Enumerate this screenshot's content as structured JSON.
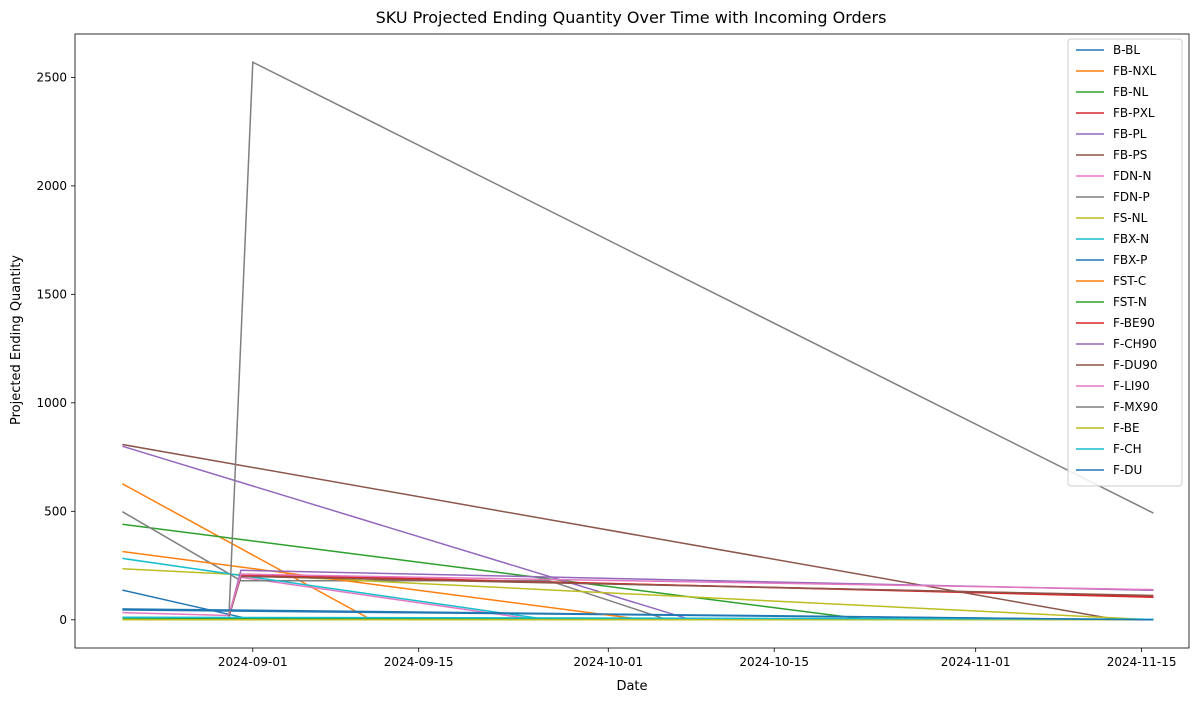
{
  "chart_data": {
    "type": "line",
    "title": "SKU Projected Ending Quantity Over Time with Incoming Orders",
    "xlabel": "Date",
    "ylabel": "Projected Ending Quantity",
    "xlim": [
      "2024-08-17",
      "2024-11-19"
    ],
    "ylim": [
      -130,
      2700
    ],
    "x_ticks": [
      "2024-09-01",
      "2024-09-15",
      "2024-10-01",
      "2024-10-15",
      "2024-11-01",
      "2024-11-15"
    ],
    "y_ticks": [
      0,
      500,
      1000,
      1500,
      2000,
      2500
    ],
    "grid": false,
    "legend": "top-right",
    "series": [
      {
        "name": "B-BL",
        "color": "#1f77b4",
        "points": [
          [
            "2024-08-21",
            137
          ],
          [
            "2024-09-01",
            0
          ],
          [
            "2024-11-16",
            0
          ]
        ]
      },
      {
        "name": "FB-NXL",
        "color": "#ff7f0e",
        "points": [
          [
            "2024-08-21",
            627
          ],
          [
            "2024-09-11",
            0
          ],
          [
            "2024-11-16",
            0
          ]
        ]
      },
      {
        "name": "FB-NL",
        "color": "#2ca02c",
        "points": [
          [
            "2024-08-21",
            440
          ],
          [
            "2024-10-23",
            0
          ],
          [
            "2024-11-16",
            0
          ]
        ]
      },
      {
        "name": "FB-PXL",
        "color": "#d62728",
        "points": [
          [
            "2024-08-30",
            18
          ],
          [
            "2024-08-31",
            210
          ],
          [
            "2024-11-16",
            104
          ]
        ]
      },
      {
        "name": "FB-PL",
        "color": "#9467bd",
        "points": [
          [
            "2024-08-21",
            800
          ],
          [
            "2024-10-08",
            0
          ],
          [
            "2024-11-16",
            0
          ]
        ]
      },
      {
        "name": "FB-PS",
        "color": "#8c564b",
        "points": [
          [
            "2024-08-21",
            808
          ],
          [
            "2024-11-13",
            0
          ],
          [
            "2024-11-16",
            0
          ]
        ]
      },
      {
        "name": "FDN-N",
        "color": "#e377c2",
        "points": [
          [
            "2024-08-21",
            33
          ],
          [
            "2024-08-30",
            20
          ],
          [
            "2024-08-31",
            196
          ],
          [
            "2024-09-25",
            0
          ],
          [
            "2024-11-16",
            0
          ]
        ]
      },
      {
        "name": "FDN-P",
        "color": "#7f7f7f",
        "points": [
          [
            "2024-08-21",
            498
          ],
          [
            "2024-08-31",
            180
          ],
          [
            "2024-09-26",
            180
          ],
          [
            "2024-10-06",
            0
          ],
          [
            "2024-11-16",
            0
          ]
        ]
      },
      {
        "name": "FS-NL",
        "color": "#bcbd22",
        "points": [
          [
            "2024-08-21",
            235
          ],
          [
            "2024-11-16",
            0
          ]
        ]
      },
      {
        "name": "FBX-N",
        "color": "#17becf",
        "points": [
          [
            "2024-08-21",
            283
          ],
          [
            "2024-09-26",
            0
          ],
          [
            "2024-11-16",
            0
          ]
        ]
      },
      {
        "name": "FBX-P",
        "color": "#1f77b4",
        "points": [
          [
            "2024-08-21",
            45
          ],
          [
            "2024-11-16",
            0
          ]
        ]
      },
      {
        "name": "FST-C",
        "color": "#ff7f0e",
        "points": [
          [
            "2024-08-21",
            315
          ],
          [
            "2024-10-04",
            0
          ],
          [
            "2024-11-16",
            0
          ]
        ]
      },
      {
        "name": "FST-N",
        "color": "#2ca02c",
        "points": [
          [
            "2024-08-21",
            8
          ],
          [
            "2024-11-16",
            0
          ]
        ]
      },
      {
        "name": "F-BE90",
        "color": "#d62728",
        "points": [
          [
            "2024-08-30",
            20
          ],
          [
            "2024-08-31",
            205
          ],
          [
            "2024-11-16",
            110
          ]
        ]
      },
      {
        "name": "F-CH90",
        "color": "#9467bd",
        "points": [
          [
            "2024-08-30",
            20
          ],
          [
            "2024-08-31",
            228
          ],
          [
            "2024-11-16",
            136
          ]
        ]
      },
      {
        "name": "F-DU90",
        "color": "#8c564b",
        "points": [
          [
            "2024-08-30",
            15
          ],
          [
            "2024-08-31",
            200
          ],
          [
            "2024-11-16",
            112
          ]
        ]
      },
      {
        "name": "F-LI90",
        "color": "#e377c2",
        "points": [
          [
            "2024-08-30",
            25
          ],
          [
            "2024-08-31",
            210
          ],
          [
            "2024-11-16",
            139
          ]
        ]
      },
      {
        "name": "F-MX90",
        "color": "#7f7f7f",
        "points": [
          [
            "2024-08-30",
            30
          ],
          [
            "2024-09-01",
            2570
          ],
          [
            "2024-11-16",
            492
          ]
        ]
      },
      {
        "name": "F-BE",
        "color": "#bcbd22",
        "points": [
          [
            "2024-08-21",
            0
          ],
          [
            "2024-11-16",
            0
          ]
        ]
      },
      {
        "name": "F-CH",
        "color": "#17becf",
        "points": [
          [
            "2024-08-21",
            12
          ],
          [
            "2024-11-16",
            3
          ]
        ]
      },
      {
        "name": "F-DU",
        "color": "#1f77b4",
        "points": [
          [
            "2024-08-21",
            50
          ],
          [
            "2024-11-16",
            0
          ]
        ]
      }
    ]
  }
}
